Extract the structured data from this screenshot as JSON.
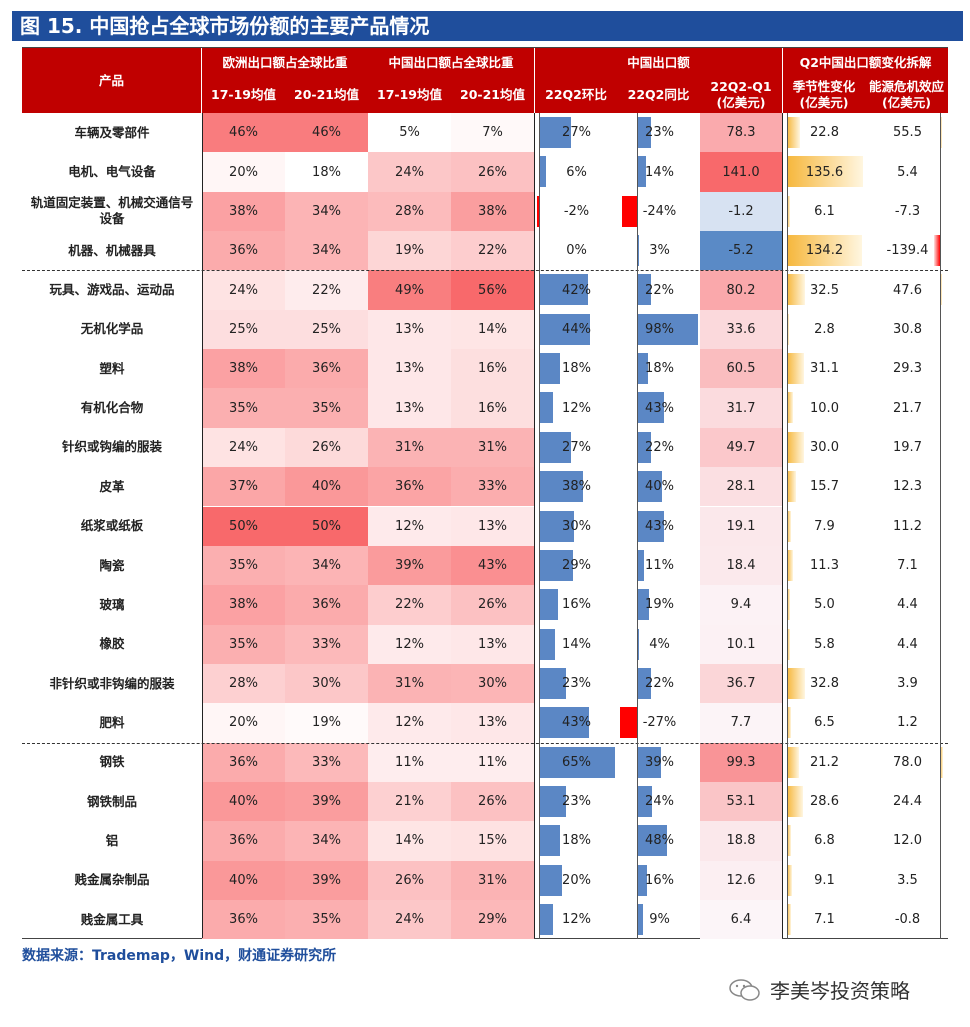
{
  "title": "图 15. 中国抢占全球市场份额的主要产品情况",
  "headers": {
    "product": "产品",
    "eu_group": "欧洲出口额占全球比重",
    "cn_group": "中国出口额占全球比重",
    "export_group": "中国出口额",
    "q2_group": "Q2中国出口额变化拆解",
    "eu_1719": "17-19均值",
    "eu_2021": "20-21均值",
    "cn_1719": "17-19均值",
    "cn_2021": "20-21均值",
    "qoq": "22Q2环比",
    "yoy": "22Q2同比",
    "diff_l1": "22Q2-Q1",
    "diff_l2": "(亿美元)",
    "seasonal_l1": "季节性变化",
    "seasonal_l2": "(亿美元)",
    "energy_l1": "能源危机效应",
    "energy_l2": "(亿美元)"
  },
  "chart_data": {
    "type": "table",
    "columns": [
      "产品",
      "欧洲出口额占全球比重 17-19均值",
      "欧洲出口额占全球比重 20-21均值",
      "中国出口额占全球比重 17-19均值",
      "中国出口额占全球比重 20-21均值",
      "22Q2环比",
      "22Q2同比",
      "22Q2-Q1(亿美元)",
      "季节性变化(亿美元)",
      "能源危机效应(亿美元)"
    ],
    "rows": [
      {
        "name": "车辆及零部件",
        "eu1": "46%",
        "eu2": "46%",
        "cn1": "5%",
        "cn2": "7%",
        "qoq": "27%",
        "yoy": "23%",
        "diff": "78.3",
        "seas": "22.8",
        "energy": "55.5"
      },
      {
        "name": "电机、电气设备",
        "eu1": "20%",
        "eu2": "18%",
        "cn1": "24%",
        "cn2": "26%",
        "qoq": "6%",
        "yoy": "14%",
        "diff": "141.0",
        "seas": "135.6",
        "energy": "5.4"
      },
      {
        "name": "轨道固定装置、机械交通信号设备",
        "eu1": "38%",
        "eu2": "34%",
        "cn1": "28%",
        "cn2": "38%",
        "qoq": "-2%",
        "yoy": "-24%",
        "diff": "-1.2",
        "seas": "6.1",
        "energy": "-7.3"
      },
      {
        "name": "机器、机械器具",
        "eu1": "36%",
        "eu2": "34%",
        "cn1": "19%",
        "cn2": "22%",
        "qoq": "0%",
        "yoy": "3%",
        "diff": "-5.2",
        "seas": "134.2",
        "energy": "-139.4"
      },
      {
        "name": "玩具、游戏品、运动品",
        "eu1": "24%",
        "eu2": "22%",
        "cn1": "49%",
        "cn2": "56%",
        "qoq": "42%",
        "yoy": "22%",
        "diff": "80.2",
        "seas": "32.5",
        "energy": "47.6"
      },
      {
        "name": "无机化学品",
        "eu1": "25%",
        "eu2": "25%",
        "cn1": "13%",
        "cn2": "14%",
        "qoq": "44%",
        "yoy": "98%",
        "diff": "33.6",
        "seas": "2.8",
        "energy": "30.8"
      },
      {
        "name": "塑料",
        "eu1": "38%",
        "eu2": "36%",
        "cn1": "13%",
        "cn2": "16%",
        "qoq": "18%",
        "yoy": "18%",
        "diff": "60.5",
        "seas": "31.1",
        "energy": "29.3"
      },
      {
        "name": "有机化合物",
        "eu1": "35%",
        "eu2": "35%",
        "cn1": "13%",
        "cn2": "16%",
        "qoq": "12%",
        "yoy": "43%",
        "diff": "31.7",
        "seas": "10.0",
        "energy": "21.7"
      },
      {
        "name": "针织或钩编的服装",
        "eu1": "24%",
        "eu2": "26%",
        "cn1": "31%",
        "cn2": "31%",
        "qoq": "27%",
        "yoy": "22%",
        "diff": "49.7",
        "seas": "30.0",
        "energy": "19.7"
      },
      {
        "name": "皮革",
        "eu1": "37%",
        "eu2": "40%",
        "cn1": "36%",
        "cn2": "33%",
        "qoq": "38%",
        "yoy": "40%",
        "diff": "28.1",
        "seas": "15.7",
        "energy": "12.3"
      },
      {
        "name": "纸浆或纸板",
        "eu1": "50%",
        "eu2": "50%",
        "cn1": "12%",
        "cn2": "13%",
        "qoq": "30%",
        "yoy": "43%",
        "diff": "19.1",
        "seas": "7.9",
        "energy": "11.2"
      },
      {
        "name": "陶瓷",
        "eu1": "35%",
        "eu2": "34%",
        "cn1": "39%",
        "cn2": "43%",
        "qoq": "29%",
        "yoy": "11%",
        "diff": "18.4",
        "seas": "11.3",
        "energy": "7.1"
      },
      {
        "name": "玻璃",
        "eu1": "38%",
        "eu2": "36%",
        "cn1": "22%",
        "cn2": "26%",
        "qoq": "16%",
        "yoy": "19%",
        "diff": "9.4",
        "seas": "5.0",
        "energy": "4.4"
      },
      {
        "name": "橡胶",
        "eu1": "35%",
        "eu2": "33%",
        "cn1": "12%",
        "cn2": "13%",
        "qoq": "14%",
        "yoy": "4%",
        "diff": "10.1",
        "seas": "5.8",
        "energy": "4.4"
      },
      {
        "name": "非针织或非钩编的服装",
        "eu1": "28%",
        "eu2": "30%",
        "cn1": "31%",
        "cn2": "30%",
        "qoq": "23%",
        "yoy": "22%",
        "diff": "36.7",
        "seas": "32.8",
        "energy": "3.9"
      },
      {
        "name": "肥料",
        "eu1": "20%",
        "eu2": "19%",
        "cn1": "12%",
        "cn2": "13%",
        "qoq": "43%",
        "yoy": "-27%",
        "diff": "7.7",
        "seas": "6.5",
        "energy": "1.2"
      },
      {
        "name": "钢铁",
        "eu1": "36%",
        "eu2": "33%",
        "cn1": "11%",
        "cn2": "11%",
        "qoq": "65%",
        "yoy": "39%",
        "diff": "99.3",
        "seas": "21.2",
        "energy": "78.0"
      },
      {
        "name": "钢铁制品",
        "eu1": "40%",
        "eu2": "39%",
        "cn1": "21%",
        "cn2": "26%",
        "qoq": "23%",
        "yoy": "24%",
        "diff": "53.1",
        "seas": "28.6",
        "energy": "24.4"
      },
      {
        "name": "铝",
        "eu1": "36%",
        "eu2": "34%",
        "cn1": "14%",
        "cn2": "15%",
        "qoq": "18%",
        "yoy": "48%",
        "diff": "18.8",
        "seas": "6.8",
        "energy": "12.0"
      },
      {
        "name": "贱金属杂制品",
        "eu1": "40%",
        "eu2": "39%",
        "cn1": "26%",
        "cn2": "31%",
        "qoq": "20%",
        "yoy": "16%",
        "diff": "12.6",
        "seas": "9.1",
        "energy": "3.5"
      },
      {
        "name": "贱金属工具",
        "eu1": "36%",
        "eu2": "35%",
        "cn1": "24%",
        "cn2": "29%",
        "qoq": "12%",
        "yoy": "9%",
        "diff": "6.4",
        "seas": "7.1",
        "energy": "-0.8"
      }
    ],
    "groups_after_rows": [
      3,
      15
    ]
  },
  "colors": {
    "header_bg": "#c00000",
    "title_bg": "#1f4e9c",
    "bar_blue": "#5b87c5",
    "bar_red": "#ff0000",
    "bar_gold": "#f6b73c",
    "heat_high": "#f8696b",
    "heat_low": "#5a8ac6"
  },
  "source": "数据来源：Trademap，Wind，财通证券研究所",
  "watermark": "李美岑投资策略"
}
